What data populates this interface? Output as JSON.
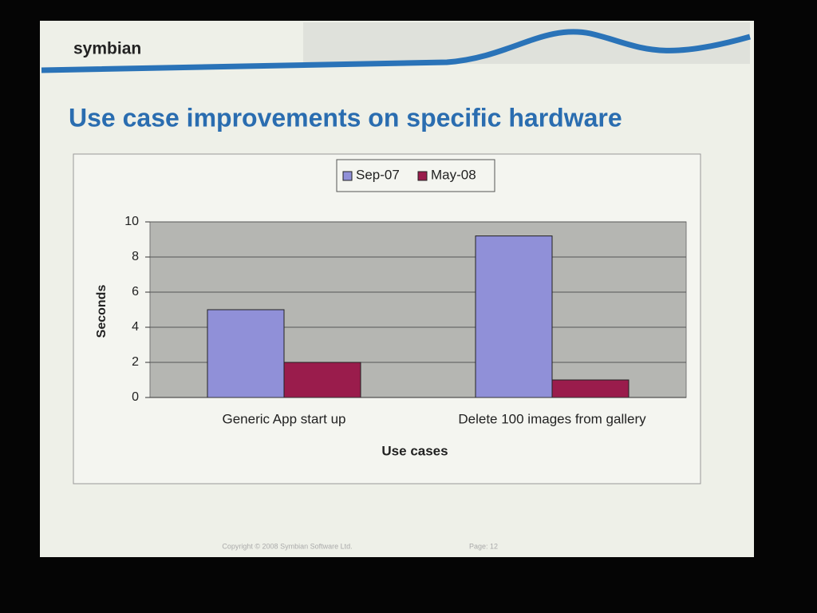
{
  "slide": {
    "logo": "symbian",
    "copyright": "Copyright © 2008 Symbian Software Ltd.",
    "page": "Page: 12"
  },
  "chart_data": {
    "type": "bar",
    "title": "Use case improvements on specific hardware",
    "categories": [
      "Generic App start up",
      "Delete 100 images from gallery"
    ],
    "series": [
      {
        "name": "Sep-07",
        "color": "#9090d8",
        "values": [
          5.0,
          9.2
        ]
      },
      {
        "name": "May-08",
        "color": "#9a1c4c",
        "values": [
          2.0,
          1.0
        ]
      }
    ],
    "x_label": "Use cases",
    "y_label": "Seconds",
    "ylim": [
      0,
      10
    ],
    "yticks": [
      0,
      2,
      4,
      6,
      8,
      10
    ],
    "grid": true,
    "legend": "top"
  }
}
